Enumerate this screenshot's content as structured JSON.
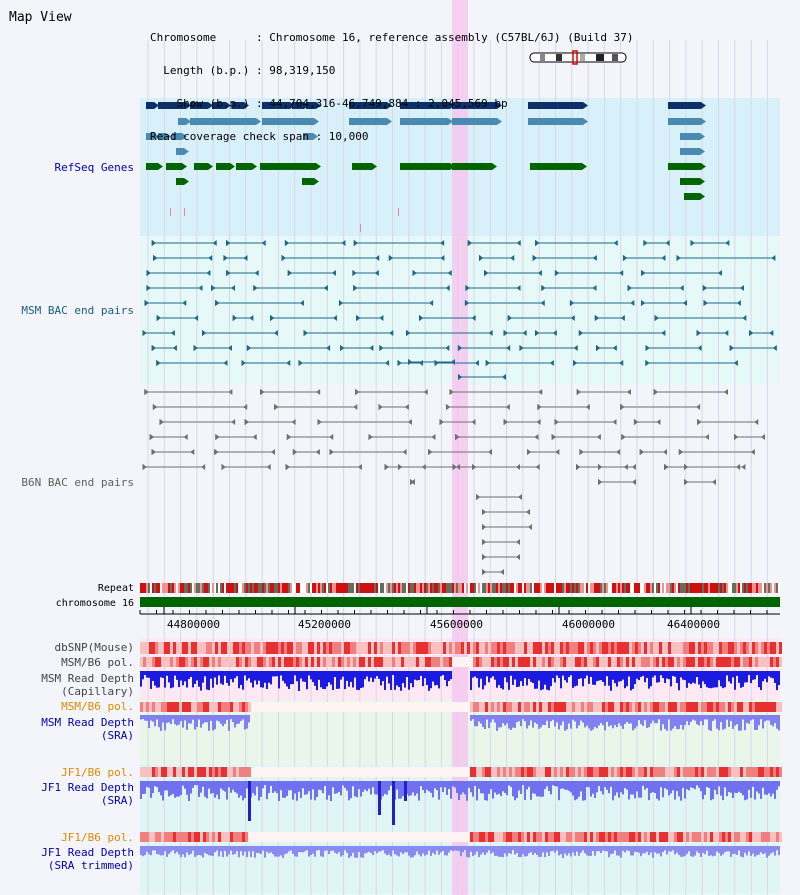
{
  "title": "Map View",
  "info": {
    "chromosome": "Chromosome      : Chromosome 16, reference assembly (C57BL/6J) (Build 37)",
    "length": "  Length (b.p.) : 98,319,150",
    "show": "    Show (b.p.) : 44,704,316-46,749,884 : 2,045,569 bp",
    "coverage": "Read coverage check span : 10,000"
  },
  "tracks": {
    "refseq": "RefSeq Genes",
    "msm_bac": "MSM BAC end pairs",
    "b6n_bac": "B6N BAC end pairs",
    "repeat": "Repeat",
    "chromosome": "chromosome 16",
    "dbsnp": "dbSNP(Mouse)",
    "msm_b6_pol": "MSM/B6 pol.",
    "msm_depth_cap_1": "MSM Read Depth",
    "msm_depth_cap_2": "(Capillary)",
    "msm_b6_pol_2": "MSM/B6 pol.",
    "msm_depth_sra_1": "MSM Read Depth",
    "msm_depth_sra_2": "(SRA)",
    "jf1_b6_pol": "JF1/B6 pol.",
    "jf1_depth_sra_1": "JF1 Read Depth",
    "jf1_depth_sra_2": "(SRA)",
    "jf1_b6_pol_2": "JF1/B6 pol.",
    "jf1_depth_trim_1": "JF1 Read Depth",
    "jf1_depth_trim_2": "(SRA trimmed)"
  },
  "axis": {
    "ticks": [
      "44800000",
      "45200000",
      "45600000",
      "46000000",
      "46400000"
    ]
  },
  "colors": {
    "refseq_bg": "#d8f0fa",
    "msm_bg": "#e6f8f8",
    "b6n_bg": "#f4f4fb",
    "highlight": "#f4c8f0",
    "dark_navy": "#0c3068",
    "steel_blue": "#4a8ab0",
    "green": "#006400",
    "teal": "#1a6a8a",
    "gray": "#707070",
    "label_blue": "#0000b0",
    "label_orange": "#e08a00",
    "label_teal": "#186080"
  }
}
